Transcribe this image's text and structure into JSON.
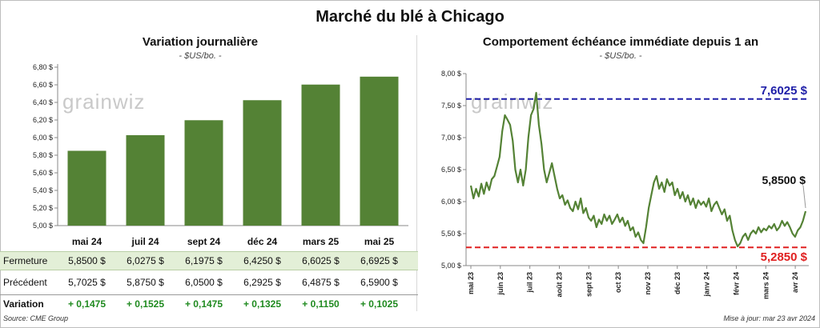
{
  "title": "Marché du blé à Chicago",
  "left_panel": {
    "title": "Variation  journalière",
    "subtitle": "- $US/bo. -",
    "table": {
      "row_close_label": "Fermeture",
      "row_prev_label": "Précédent",
      "row_var_label": "Variation",
      "close": [
        "5,8500  $",
        "6,0275  $",
        "6,1975  $",
        "6,4250  $",
        "6,6025  $",
        "6,6925  $"
      ],
      "prev": [
        "5,7025  $",
        "5,8750  $",
        "6,0500  $",
        "6,2925  $",
        "6,4875  $",
        "6,5900  $"
      ],
      "var": [
        "+ 0,1475",
        "+ 0,1525",
        "+ 0,1475",
        "+ 0,1325",
        "+ 0,1150",
        "+ 0,1025"
      ]
    }
  },
  "right_panel": {
    "title": "Comportement  échéance immédiate depuis 1 an",
    "subtitle": "- $US/bo. -",
    "high_label": "7,6025 $",
    "low_label": "5,2850  $",
    "last_label": "5,8500 $"
  },
  "watermark": "grainwiz",
  "footer": {
    "source": "Source: CME Group",
    "updated": "Mise à jour: mar 23 avr 2024"
  },
  "colors": {
    "bar": "#548235",
    "line": "#548235",
    "high_line": "#1f1fa8",
    "low_line": "#e02020",
    "up": "#1f8a1f"
  },
  "chart_data": [
    {
      "type": "bar",
      "categories": [
        "mai 24",
        "juil 24",
        "sept 24",
        "déc 24",
        "mars 25",
        "mai 25"
      ],
      "values": [
        5.85,
        6.0275,
        6.1975,
        6.425,
        6.6025,
        6.6925
      ],
      "yticks": [
        "5,00 $",
        "5,20 $",
        "5,40 $",
        "5,60 $",
        "5,80 $",
        "6,00 $",
        "6,20 $",
        "6,40 $",
        "6,60 $",
        "6,80 $"
      ],
      "ylim": [
        5.0,
        6.8
      ],
      "grid": false
    },
    {
      "type": "line",
      "xticks": [
        "mai 23",
        "juin 23",
        "juil 23",
        "août 23",
        "sept 23",
        "oct 23",
        "nov 23",
        "déc 23",
        "janv 24",
        "févr 24",
        "mars 24",
        "avr 24"
      ],
      "yticks": [
        "5,00 $",
        "5,50 $",
        "6,00 $",
        "6,50 $",
        "7,00 $",
        "7,50 $",
        "8,00 $"
      ],
      "ylim": [
        5.0,
        8.0
      ],
      "reference_lines": [
        7.6025,
        5.285
      ],
      "last_value": 5.85,
      "values": [
        6.25,
        6.05,
        6.2,
        6.08,
        6.28,
        6.12,
        6.3,
        6.18,
        6.35,
        6.4,
        6.55,
        6.7,
        7.1,
        7.35,
        7.28,
        7.2,
        6.95,
        6.5,
        6.3,
        6.5,
        6.25,
        6.5,
        7.0,
        7.35,
        7.45,
        7.7,
        7.2,
        6.9,
        6.5,
        6.3,
        6.45,
        6.6,
        6.4,
        6.2,
        6.05,
        6.1,
        5.95,
        6.02,
        5.9,
        5.85,
        6.0,
        5.88,
        6.05,
        5.82,
        5.9,
        5.75,
        5.7,
        5.78,
        5.6,
        5.72,
        5.65,
        5.8,
        5.7,
        5.78,
        5.65,
        5.72,
        5.8,
        5.68,
        5.75,
        5.62,
        5.7,
        5.55,
        5.6,
        5.45,
        5.52,
        5.4,
        5.35,
        5.6,
        5.9,
        6.1,
        6.3,
        6.4,
        6.2,
        6.3,
        6.15,
        6.35,
        6.25,
        6.3,
        6.1,
        6.2,
        6.05,
        6.15,
        6.0,
        6.1,
        5.95,
        6.05,
        5.9,
        6.02,
        5.95,
        6.0,
        5.92,
        6.05,
        5.85,
        5.95,
        6.0,
        5.9,
        5.8,
        5.88,
        5.7,
        5.78,
        5.55,
        5.4,
        5.3,
        5.35,
        5.45,
        5.5,
        5.4,
        5.5,
        5.55,
        5.5,
        5.6,
        5.52,
        5.58,
        5.55,
        5.62,
        5.58,
        5.65,
        5.55,
        5.6,
        5.7,
        5.62,
        5.68,
        5.6,
        5.5,
        5.45,
        5.55,
        5.6,
        5.7,
        5.85
      ]
    }
  ]
}
